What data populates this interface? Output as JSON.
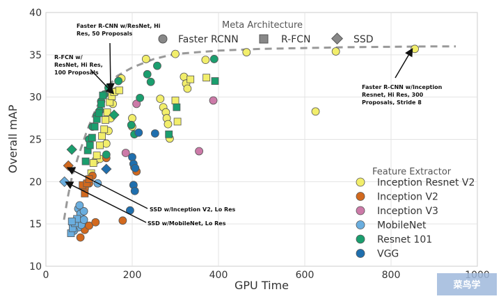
{
  "chart_data": {
    "type": "scatter",
    "xlabel": "GPU Time",
    "ylabel": "Overall mAP",
    "xlim": [
      0,
      1000
    ],
    "ylim": [
      10,
      40
    ],
    "xticks": [
      "0",
      "200",
      "400",
      "600",
      "800",
      "1000"
    ],
    "yticks": [
      "10",
      "15",
      "20",
      "25",
      "30",
      "35",
      "40"
    ],
    "grid": true,
    "meta_legend": {
      "title": "Meta Architecture",
      "placement": "top-center",
      "items": [
        {
          "label": "Faster RCNN",
          "marker": "circle"
        },
        {
          "label": "R-FCN",
          "marker": "square"
        },
        {
          "label": "SSD",
          "marker": "diamond"
        }
      ]
    },
    "feature_legend": {
      "title": "Feature Extractor",
      "placement": "lower-right",
      "items": [
        {
          "label": "Inception Resnet V2",
          "color": "#f2ee6b"
        },
        {
          "label": "Inception V2",
          "color": "#d2691e"
        },
        {
          "label": "Inception V3",
          "color": "#cc7aa8"
        },
        {
          "label": "MobileNet",
          "color": "#6aaedf"
        },
        {
          "label": "Resnet 101",
          "color": "#1a9e6e"
        },
        {
          "label": "VGG",
          "color": "#1f6fae"
        }
      ]
    },
    "frontier": [
      [
        42,
        15.5
      ],
      [
        50,
        18
      ],
      [
        60,
        20.5
      ],
      [
        75,
        23
      ],
      [
        95,
        26
      ],
      [
        115,
        28.5
      ],
      [
        140,
        31
      ],
      [
        165,
        32.5
      ],
      [
        200,
        33.5
      ],
      [
        250,
        34.5
      ],
      [
        300,
        35.1
      ],
      [
        400,
        35.5
      ],
      [
        500,
        35.7
      ],
      [
        600,
        35.8
      ],
      [
        700,
        35.9
      ],
      [
        800,
        35.95
      ],
      [
        900,
        36
      ],
      [
        950,
        36
      ]
    ],
    "annotations": [
      {
        "text": [
          "Faster R-CNN w/ResNet, Hi",
          "Res, 50 Proposals"
        ],
        "target": [
          150,
          30.9
        ]
      },
      {
        "text": [
          "R-FCN w/",
          "ResNet, Hi Res,",
          "100 Proposals"
        ],
        "target": [
          155,
          30.5
        ]
      },
      {
        "text": [
          "SSD w/Inception V2, Lo Res"
        ],
        "target": [
          52,
          21.6
        ]
      },
      {
        "text": [
          "SSD w/MobileNet, Lo Res"
        ],
        "target": [
          48,
          19.9
        ]
      },
      {
        "text": [
          "Faster R-CNN w/Inception",
          "Resnet, Hi Res, 300",
          "Proposals, Stride 8"
        ],
        "target": [
          848,
          35.6
        ]
      }
    ],
    "series": [
      {
        "name": "Inception Resnet V2",
        "color": "#f2ee6b",
        "points": [
          {
            "x": 115,
            "y": 22.5,
            "m": "circle"
          },
          {
            "x": 125,
            "y": 22.7,
            "m": "circle"
          },
          {
            "x": 140,
            "y": 24.5,
            "m": "circle"
          },
          {
            "x": 145,
            "y": 26,
            "m": "circle"
          },
          {
            "x": 150,
            "y": 27.5,
            "m": "circle"
          },
          {
            "x": 155,
            "y": 29.2,
            "m": "circle"
          },
          {
            "x": 162,
            "y": 30.7,
            "m": "circle"
          },
          {
            "x": 175,
            "y": 32.2,
            "m": "circle"
          },
          {
            "x": 200,
            "y": 27.5,
            "m": "circle"
          },
          {
            "x": 200,
            "y": 26.5,
            "m": "circle"
          },
          {
            "x": 232,
            "y": 34.5,
            "m": "circle"
          },
          {
            "x": 265,
            "y": 29.8,
            "m": "circle"
          },
          {
            "x": 272,
            "y": 28.8,
            "m": "circle"
          },
          {
            "x": 278,
            "y": 28.2,
            "m": "circle"
          },
          {
            "x": 280,
            "y": 27.5,
            "m": "circle"
          },
          {
            "x": 283,
            "y": 26.8,
            "m": "circle"
          },
          {
            "x": 287,
            "y": 25.1,
            "m": "circle"
          },
          {
            "x": 320,
            "y": 32.4,
            "m": "circle"
          },
          {
            "x": 325,
            "y": 31.6,
            "m": "circle"
          },
          {
            "x": 328,
            "y": 31,
            "m": "circle"
          },
          {
            "x": 370,
            "y": 34.4,
            "m": "circle"
          },
          {
            "x": 465,
            "y": 35.3,
            "m": "circle"
          },
          {
            "x": 625,
            "y": 28.3,
            "m": "circle"
          },
          {
            "x": 672,
            "y": 35.4,
            "m": "circle"
          },
          {
            "x": 855,
            "y": 35.7,
            "m": "circle"
          },
          {
            "x": 300,
            "y": 35.1,
            "m": "circle"
          },
          {
            "x": 105,
            "y": 21,
            "m": "square"
          },
          {
            "x": 110,
            "y": 22.2,
            "m": "square"
          },
          {
            "x": 118,
            "y": 23.1,
            "m": "square"
          },
          {
            "x": 125,
            "y": 24.3,
            "m": "square"
          },
          {
            "x": 130,
            "y": 25.4,
            "m": "square"
          },
          {
            "x": 135,
            "y": 26.2,
            "m": "square"
          },
          {
            "x": 138,
            "y": 27.3,
            "m": "square"
          },
          {
            "x": 142,
            "y": 28.2,
            "m": "square"
          },
          {
            "x": 148,
            "y": 29.4,
            "m": "square"
          },
          {
            "x": 153,
            "y": 30.1,
            "m": "square"
          },
          {
            "x": 158,
            "y": 30.6,
            "m": "square"
          },
          {
            "x": 170,
            "y": 30.8,
            "m": "square"
          },
          {
            "x": 300,
            "y": 29.6,
            "m": "square"
          },
          {
            "x": 305,
            "y": 27.1,
            "m": "square"
          },
          {
            "x": 335,
            "y": 32.1,
            "m": "square"
          },
          {
            "x": 372,
            "y": 32.3,
            "m": "square"
          }
        ]
      },
      {
        "name": "Inception V2",
        "color": "#d2691e",
        "points": [
          {
            "x": 80,
            "y": 13.4,
            "m": "circle"
          },
          {
            "x": 90,
            "y": 14.3,
            "m": "circle"
          },
          {
            "x": 100,
            "y": 14.8,
            "m": "circle"
          },
          {
            "x": 115,
            "y": 15.2,
            "m": "circle"
          },
          {
            "x": 90,
            "y": 19.2,
            "m": "circle"
          },
          {
            "x": 100,
            "y": 19.8,
            "m": "circle"
          },
          {
            "x": 108,
            "y": 20.7,
            "m": "circle"
          },
          {
            "x": 178,
            "y": 15.4,
            "m": "circle"
          },
          {
            "x": 205,
            "y": 21.7,
            "m": "circle"
          },
          {
            "x": 210,
            "y": 21.2,
            "m": "circle"
          },
          {
            "x": 140,
            "y": 22.8,
            "m": "circle"
          },
          {
            "x": 85,
            "y": 19.6,
            "m": "square"
          },
          {
            "x": 90,
            "y": 18.6,
            "m": "square"
          },
          {
            "x": 95,
            "y": 19.8,
            "m": "square"
          },
          {
            "x": 100,
            "y": 20.3,
            "m": "square"
          },
          {
            "x": 52,
            "y": 21.9,
            "m": "diamond"
          }
        ]
      },
      {
        "name": "Inception V3",
        "color": "#cc7aa8",
        "points": [
          {
            "x": 185,
            "y": 23.4,
            "m": "circle"
          },
          {
            "x": 210,
            "y": 29.2,
            "m": "circle"
          },
          {
            "x": 355,
            "y": 23.6,
            "m": "circle"
          },
          {
            "x": 388,
            "y": 29.6,
            "m": "circle"
          }
        ]
      },
      {
        "name": "MobileNet",
        "color": "#6aaedf",
        "points": [
          {
            "x": 75,
            "y": 16.8,
            "m": "circle"
          },
          {
            "x": 80,
            "y": 16.2,
            "m": "circle"
          },
          {
            "x": 88,
            "y": 16.5,
            "m": "circle"
          },
          {
            "x": 70,
            "y": 15.2,
            "m": "circle"
          },
          {
            "x": 75,
            "y": 14.6,
            "m": "circle"
          },
          {
            "x": 82,
            "y": 14.9,
            "m": "circle"
          },
          {
            "x": 88,
            "y": 15.5,
            "m": "circle"
          },
          {
            "x": 78,
            "y": 17.2,
            "m": "circle"
          },
          {
            "x": 65,
            "y": 14.2,
            "m": "circle"
          },
          {
            "x": 120,
            "y": 19.8,
            "m": "circle"
          },
          {
            "x": 58,
            "y": 13.9,
            "m": "square"
          },
          {
            "x": 62,
            "y": 14.5,
            "m": "square"
          },
          {
            "x": 67,
            "y": 15.1,
            "m": "square"
          },
          {
            "x": 72,
            "y": 15.6,
            "m": "square"
          },
          {
            "x": 60,
            "y": 15.3,
            "m": "square"
          },
          {
            "x": 43,
            "y": 20,
            "m": "diamond"
          }
        ]
      },
      {
        "name": "Resnet 101",
        "color": "#1a9e6e",
        "points": [
          {
            "x": 100,
            "y": 25,
            "m": "circle"
          },
          {
            "x": 108,
            "y": 26.5,
            "m": "circle"
          },
          {
            "x": 118,
            "y": 27.8,
            "m": "circle"
          },
          {
            "x": 125,
            "y": 28.4,
            "m": "circle"
          },
          {
            "x": 128,
            "y": 29.5,
            "m": "circle"
          },
          {
            "x": 135,
            "y": 30.3,
            "m": "circle"
          },
          {
            "x": 145,
            "y": 31.1,
            "m": "circle"
          },
          {
            "x": 140,
            "y": 23.2,
            "m": "circle"
          },
          {
            "x": 168,
            "y": 31.9,
            "m": "circle"
          },
          {
            "x": 198,
            "y": 26.7,
            "m": "circle"
          },
          {
            "x": 205,
            "y": 25.6,
            "m": "circle"
          },
          {
            "x": 218,
            "y": 29.9,
            "m": "circle"
          },
          {
            "x": 235,
            "y": 32.7,
            "m": "circle"
          },
          {
            "x": 243,
            "y": 31.8,
            "m": "circle"
          },
          {
            "x": 258,
            "y": 33.7,
            "m": "circle"
          },
          {
            "x": 390,
            "y": 34.5,
            "m": "circle"
          },
          {
            "x": 92,
            "y": 22.4,
            "m": "square"
          },
          {
            "x": 97,
            "y": 23.7,
            "m": "square"
          },
          {
            "x": 102,
            "y": 24.3,
            "m": "square"
          },
          {
            "x": 107,
            "y": 25.2,
            "m": "square"
          },
          {
            "x": 113,
            "y": 26.5,
            "m": "square"
          },
          {
            "x": 118,
            "y": 27.4,
            "m": "square"
          },
          {
            "x": 123,
            "y": 28.1,
            "m": "square"
          },
          {
            "x": 128,
            "y": 29.2,
            "m": "square"
          },
          {
            "x": 132,
            "y": 30.2,
            "m": "square"
          },
          {
            "x": 285,
            "y": 25.6,
            "m": "square"
          },
          {
            "x": 303,
            "y": 28.8,
            "m": "square"
          },
          {
            "x": 392,
            "y": 31.9,
            "m": "square"
          },
          {
            "x": 60,
            "y": 23.8,
            "m": "diamond"
          },
          {
            "x": 158,
            "y": 27.9,
            "m": "diamond"
          }
        ]
      },
      {
        "name": "VGG",
        "color": "#1f6fae",
        "points": [
          {
            "x": 200,
            "y": 22.9,
            "m": "circle"
          },
          {
            "x": 203,
            "y": 22.1,
            "m": "circle"
          },
          {
            "x": 207,
            "y": 21.6,
            "m": "circle"
          },
          {
            "x": 203,
            "y": 19.6,
            "m": "circle"
          },
          {
            "x": 206,
            "y": 18.9,
            "m": "circle"
          },
          {
            "x": 195,
            "y": 16.6,
            "m": "circle"
          },
          {
            "x": 215,
            "y": 25.8,
            "m": "circle"
          },
          {
            "x": 253,
            "y": 25.7,
            "m": "circle"
          },
          {
            "x": 140,
            "y": 21.5,
            "m": "diamond"
          }
        ]
      }
    ]
  },
  "watermark": {
    "text": "菜鸟学"
  }
}
